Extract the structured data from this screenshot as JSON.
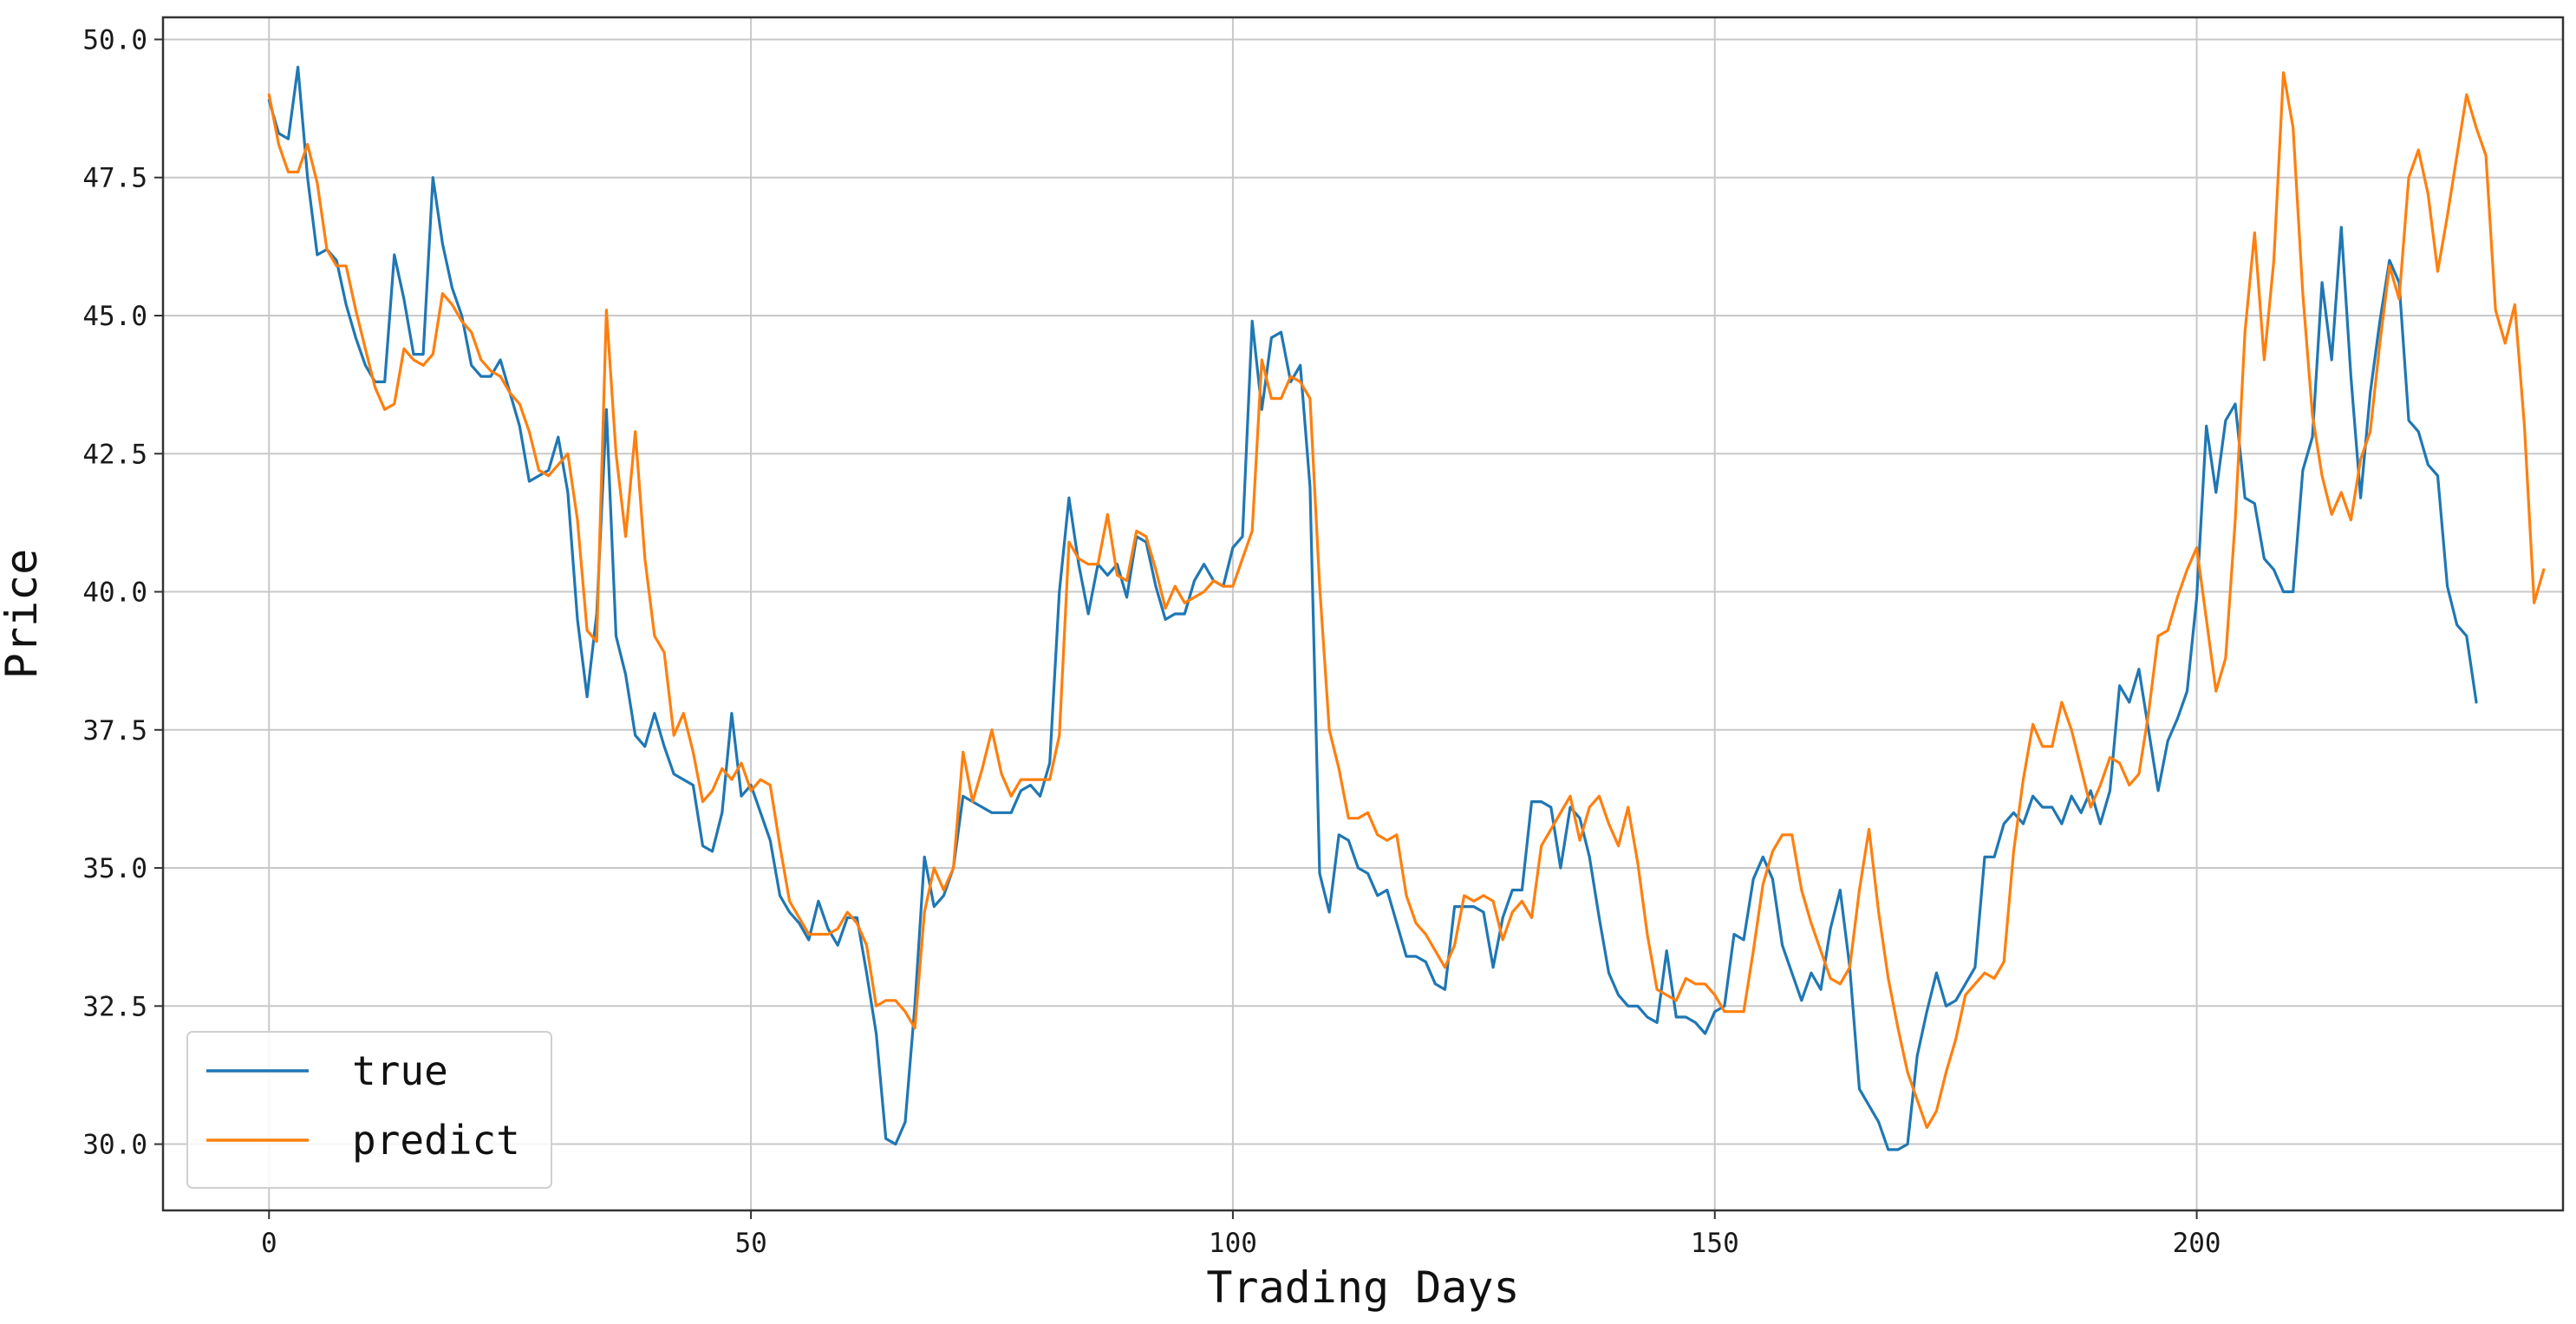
{
  "chart_data": {
    "type": "line",
    "title": "",
    "xlabel": "Trading Days",
    "ylabel": "Price",
    "xlim": [
      -11,
      238
    ],
    "ylim": [
      28.8,
      50.4
    ],
    "xticks": [
      0,
      50,
      100,
      150,
      200
    ],
    "xtick_labels": [
      "0",
      "50",
      "100",
      "150",
      "200"
    ],
    "yticks": [
      30.0,
      32.5,
      35.0,
      37.5,
      40.0,
      42.5,
      45.0,
      47.5,
      50.0
    ],
    "ytick_labels": [
      "30.0",
      "32.5",
      "35.0",
      "37.5",
      "40.0",
      "42.5",
      "45.0",
      "47.5",
      "50.0"
    ],
    "grid": true,
    "legend": {
      "placement": "lower-left",
      "entries": [
        "true",
        "predict"
      ]
    },
    "series": [
      {
        "name": "true",
        "color": "#1f77b4",
        "x_start": 0,
        "values": [
          48.9,
          48.3,
          48.2,
          49.5,
          47.5,
          46.1,
          46.2,
          46.0,
          45.2,
          44.6,
          44.1,
          43.8,
          43.8,
          46.1,
          45.3,
          44.3,
          44.3,
          47.5,
          46.3,
          45.5,
          45.0,
          44.1,
          43.9,
          43.9,
          44.2,
          43.6,
          43.0,
          42.0,
          42.1,
          42.2,
          42.8,
          41.8,
          39.5,
          38.1,
          39.6,
          43.3,
          39.2,
          38.5,
          37.4,
          37.2,
          37.8,
          37.2,
          36.7,
          36.6,
          36.5,
          35.4,
          35.3,
          36.0,
          37.8,
          36.3,
          36.5,
          36.0,
          35.5,
          34.5,
          34.2,
          34.0,
          33.7,
          34.4,
          33.9,
          33.6,
          34.1,
          34.1,
          33.1,
          32.0,
          30.1,
          30.0,
          30.4,
          32.5,
          35.2,
          34.3,
          34.5,
          35.0,
          36.3,
          36.2,
          36.1,
          36.0,
          36.0,
          36.0,
          36.4,
          36.5,
          36.3,
          36.9,
          40.0,
          41.7,
          40.5,
          39.6,
          40.5,
          40.3,
          40.5,
          39.9,
          41.0,
          40.9,
          40.1,
          39.5,
          39.6,
          39.6,
          40.2,
          40.5,
          40.2,
          40.1,
          40.8,
          41.0,
          44.9,
          43.3,
          44.6,
          44.7,
          43.8,
          44.1,
          41.9,
          34.9,
          34.2,
          35.6,
          35.5,
          35.0,
          34.9,
          34.5,
          34.6,
          34.0,
          33.4,
          33.4,
          33.3,
          32.9,
          32.8,
          34.3,
          34.3,
          34.3,
          34.2,
          33.2,
          34.1,
          34.6,
          34.6,
          36.2,
          36.2,
          36.1,
          35.0,
          36.1,
          35.9,
          35.2,
          34.1,
          33.1,
          32.7,
          32.5,
          32.5,
          32.3,
          32.2,
          33.5,
          32.3,
          32.3,
          32.2,
          32.0,
          32.4,
          32.5,
          33.8,
          33.7,
          34.8,
          35.2,
          34.8,
          33.6,
          33.1,
          32.6,
          33.1,
          32.8,
          33.9,
          34.6,
          33.2,
          31.0,
          30.7,
          30.4,
          29.9,
          29.9,
          30.0,
          31.6,
          32.4,
          33.1,
          32.5,
          32.6,
          32.9,
          33.2,
          35.2,
          35.2,
          35.8,
          36.0,
          35.8,
          36.3,
          36.1,
          36.1,
          35.8,
          36.3,
          36.0,
          36.4,
          35.8,
          36.4,
          38.3,
          38.0,
          38.6,
          37.5,
          36.4,
          37.3,
          37.7,
          38.2,
          39.9,
          43.0,
          41.8,
          43.1,
          43.4,
          41.7,
          41.6,
          40.6,
          40.4,
          40.0,
          40.0,
          42.2,
          42.8,
          45.6,
          44.2,
          46.6,
          43.9,
          41.7,
          43.6,
          44.9,
          46.0,
          45.6,
          43.1,
          42.9,
          42.3,
          42.1,
          40.1,
          39.4,
          39.2,
          38.0
        ]
      },
      {
        "name": "predict",
        "color": "#ff7f0e",
        "x_start": 0,
        "values": [
          49.0,
          48.1,
          47.6,
          47.6,
          48.1,
          47.4,
          46.2,
          45.9,
          45.9,
          45.1,
          44.4,
          43.7,
          43.3,
          43.4,
          44.4,
          44.2,
          44.1,
          44.3,
          45.4,
          45.2,
          44.9,
          44.7,
          44.2,
          44.0,
          43.9,
          43.6,
          43.4,
          42.9,
          42.2,
          42.1,
          42.3,
          42.5,
          41.3,
          39.3,
          39.1,
          45.1,
          42.5,
          41.0,
          42.9,
          40.6,
          39.2,
          38.9,
          37.4,
          37.8,
          37.1,
          36.2,
          36.4,
          36.8,
          36.6,
          36.9,
          36.4,
          36.6,
          36.5,
          35.4,
          34.4,
          34.1,
          33.8,
          33.8,
          33.8,
          33.9,
          34.2,
          34.0,
          33.6,
          32.5,
          32.6,
          32.6,
          32.4,
          32.1,
          34.2,
          35.0,
          34.6,
          35.0,
          37.1,
          36.2,
          36.8,
          37.5,
          36.7,
          36.3,
          36.6,
          36.6,
          36.6,
          36.6,
          37.4,
          40.9,
          40.6,
          40.5,
          40.5,
          41.4,
          40.3,
          40.2,
          41.1,
          41.0,
          40.4,
          39.7,
          40.1,
          39.8,
          39.9,
          40.0,
          40.2,
          40.1,
          40.1,
          40.6,
          41.1,
          44.2,
          43.5,
          43.5,
          43.9,
          43.8,
          43.5,
          40.1,
          37.5,
          36.8,
          35.9,
          35.9,
          36.0,
          35.6,
          35.5,
          35.6,
          34.5,
          34.0,
          33.8,
          33.5,
          33.2,
          33.6,
          34.5,
          34.4,
          34.5,
          34.4,
          33.7,
          34.2,
          34.4,
          34.1,
          35.4,
          35.7,
          36.0,
          36.3,
          35.5,
          36.1,
          36.3,
          35.8,
          35.4,
          36.1,
          35.1,
          33.8,
          32.8,
          32.7,
          32.6,
          33.0,
          32.9,
          32.9,
          32.7,
          32.4,
          32.4,
          32.4,
          33.5,
          34.7,
          35.3,
          35.6,
          35.6,
          34.6,
          34.0,
          33.5,
          33.0,
          32.9,
          33.2,
          34.6,
          35.7,
          34.2,
          33.0,
          32.1,
          31.3,
          30.8,
          30.3,
          30.6,
          31.3,
          31.9,
          32.7,
          32.9,
          33.1,
          33.0,
          33.3,
          35.3,
          36.6,
          37.6,
          37.2,
          37.2,
          38.0,
          37.5,
          36.8,
          36.1,
          36.5,
          37.0,
          36.9,
          36.5,
          36.7,
          37.8,
          39.2,
          39.3,
          39.9,
          40.4,
          40.8,
          39.5,
          38.2,
          38.8,
          41.3,
          44.7,
          46.5,
          44.2,
          46.0,
          49.4,
          48.4,
          45.4,
          43.2,
          42.1,
          41.4,
          41.8,
          41.3,
          42.4,
          42.9,
          44.5,
          45.9,
          45.3,
          47.5,
          48.0,
          47.2,
          45.8,
          46.8,
          47.9,
          49.0,
          48.4,
          47.9,
          45.1,
          44.5,
          45.2,
          43.0,
          39.8,
          40.4
        ]
      }
    ]
  }
}
